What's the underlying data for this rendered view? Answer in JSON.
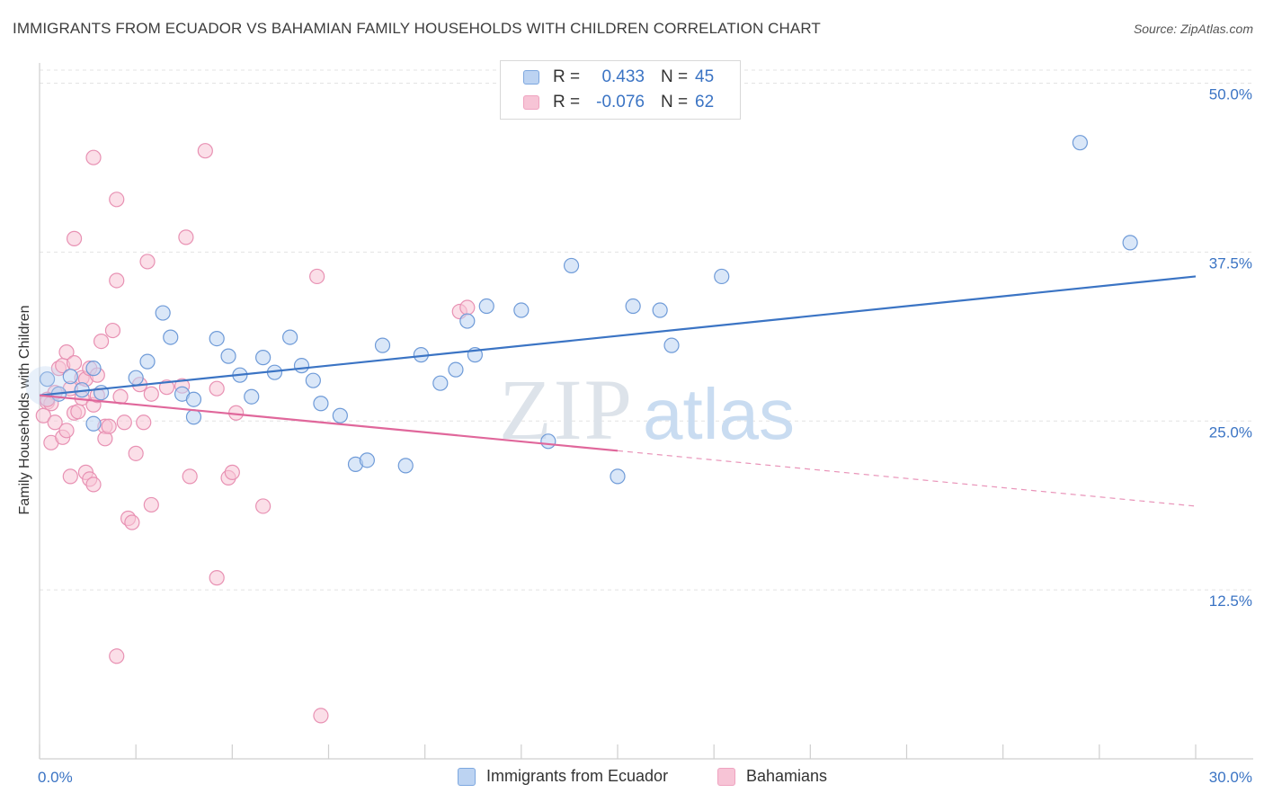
{
  "title": "IMMIGRANTS FROM ECUADOR VS BAHAMIAN FAMILY HOUSEHOLDS WITH CHILDREN CORRELATION CHART",
  "source": "Source: ZipAtlas.com",
  "watermark": {
    "zip": "ZIP",
    "atlas": "atlas"
  },
  "colors": {
    "blue": "#3b74c4",
    "blue_fill": "#bcd3f2",
    "pink": "#e0679b",
    "pink_fill": "#f7c4d6",
    "grid": "#e3e3e3",
    "axis": "#cfcfcf"
  },
  "stats_legend": {
    "rows": [
      {
        "r_label": "R =",
        "r_value": "0.433",
        "n_label": "N =",
        "n_value": "45"
      },
      {
        "r_label": "R =",
        "r_value": "-0.076",
        "n_label": "N =",
        "n_value": "62"
      }
    ]
  },
  "bottom_legend": {
    "series1": "Immigrants from Ecuador",
    "series2": "Bahamians"
  },
  "chart_data": {
    "type": "scatter",
    "title": "IMMIGRANTS FROM ECUADOR VS BAHAMIAN FAMILY HOUSEHOLDS WITH CHILDREN CORRELATION CHART",
    "xlabel": "",
    "ylabel": "Family Households with Children",
    "xlim": [
      0,
      30
    ],
    "ylim": [
      0,
      51.5
    ],
    "x_tick_labels": [
      "0.0%",
      "30.0%"
    ],
    "y_ticks": [
      12.5,
      25.0,
      37.5,
      50.0
    ],
    "y_tick_labels": [
      "12.5%",
      "25.0%",
      "37.5%",
      "50.0%"
    ],
    "grid": true,
    "legend_position": "top-center",
    "series": [
      {
        "name": "Immigrants from Ecuador",
        "color": "#3b74c4",
        "points": [
          [
            0.2,
            28.1
          ],
          [
            0.5,
            27.0
          ],
          [
            0.8,
            28.3
          ],
          [
            1.1,
            27.3
          ],
          [
            1.4,
            28.9
          ],
          [
            1.4,
            24.8
          ],
          [
            1.6,
            27.1
          ],
          [
            2.5,
            28.2
          ],
          [
            2.8,
            29.4
          ],
          [
            3.2,
            33.0
          ],
          [
            3.4,
            31.2
          ],
          [
            3.7,
            27.0
          ],
          [
            4.0,
            26.6
          ],
          [
            4.0,
            25.3
          ],
          [
            4.6,
            31.1
          ],
          [
            4.9,
            29.8
          ],
          [
            5.2,
            28.4
          ],
          [
            5.5,
            26.8
          ],
          [
            5.8,
            29.7
          ],
          [
            6.1,
            28.6
          ],
          [
            6.5,
            31.2
          ],
          [
            6.8,
            29.1
          ],
          [
            7.1,
            28.0
          ],
          [
            7.3,
            26.3
          ],
          [
            7.8,
            25.4
          ],
          [
            8.2,
            21.8
          ],
          [
            8.5,
            22.1
          ],
          [
            8.9,
            30.6
          ],
          [
            9.5,
            21.7
          ],
          [
            9.9,
            29.9
          ],
          [
            10.4,
            27.8
          ],
          [
            10.8,
            28.8
          ],
          [
            11.1,
            32.4
          ],
          [
            11.3,
            29.9
          ],
          [
            11.6,
            33.5
          ],
          [
            12.5,
            33.2
          ],
          [
            13.2,
            23.5
          ],
          [
            13.8,
            36.5
          ],
          [
            15.0,
            20.9
          ],
          [
            15.4,
            33.5
          ],
          [
            16.1,
            33.2
          ],
          [
            16.4,
            30.6
          ],
          [
            17.7,
            35.7
          ],
          [
            28.3,
            38.2
          ],
          [
            27.0,
            45.6
          ]
        ],
        "trend": {
          "x": [
            0,
            30
          ],
          "y": [
            26.9,
            35.7
          ]
        }
      },
      {
        "name": "Bahamians",
        "color": "#e0679b",
        "points": [
          [
            0.1,
            25.4
          ],
          [
            0.2,
            26.4
          ],
          [
            0.3,
            26.3
          ],
          [
            0.3,
            23.4
          ],
          [
            0.4,
            27.1
          ],
          [
            0.4,
            24.9
          ],
          [
            0.5,
            28.9
          ],
          [
            0.6,
            23.8
          ],
          [
            0.6,
            29.1
          ],
          [
            0.7,
            24.3
          ],
          [
            0.7,
            30.1
          ],
          [
            0.8,
            27.4
          ],
          [
            0.8,
            20.9
          ],
          [
            0.9,
            25.6
          ],
          [
            0.9,
            38.5
          ],
          [
            1.0,
            25.7
          ],
          [
            1.1,
            28.2
          ],
          [
            1.1,
            26.7
          ],
          [
            1.2,
            28.1
          ],
          [
            1.2,
            21.2
          ],
          [
            1.3,
            28.9
          ],
          [
            1.3,
            20.7
          ],
          [
            1.4,
            26.2
          ],
          [
            1.4,
            20.3
          ],
          [
            1.4,
            44.5
          ],
          [
            1.5,
            26.9
          ],
          [
            1.6,
            30.9
          ],
          [
            1.7,
            24.6
          ],
          [
            1.7,
            23.7
          ],
          [
            1.8,
            24.6
          ],
          [
            1.9,
            31.7
          ],
          [
            2.0,
            35.4
          ],
          [
            2.0,
            41.4
          ],
          [
            2.1,
            26.8
          ],
          [
            2.2,
            24.9
          ],
          [
            2.3,
            17.8
          ],
          [
            2.4,
            17.5
          ],
          [
            2.5,
            22.6
          ],
          [
            2.6,
            27.7
          ],
          [
            2.7,
            24.9
          ],
          [
            2.8,
            36.8
          ],
          [
            2.9,
            18.8
          ],
          [
            2.9,
            27.0
          ],
          [
            3.3,
            27.5
          ],
          [
            3.7,
            27.6
          ],
          [
            3.8,
            38.6
          ],
          [
            3.9,
            20.9
          ],
          [
            4.3,
            45.0
          ],
          [
            4.6,
            27.4
          ],
          [
            4.6,
            13.4
          ],
          [
            4.9,
            20.8
          ],
          [
            5.0,
            21.2
          ],
          [
            5.1,
            25.6
          ],
          [
            5.8,
            18.7
          ],
          [
            7.2,
            35.7
          ],
          [
            7.3,
            3.2
          ],
          [
            10.9,
            33.1
          ],
          [
            11.1,
            33.4
          ],
          [
            2.0,
            7.6
          ],
          [
            0.9,
            29.3
          ],
          [
            1.5,
            28.4
          ],
          [
            0.2,
            26.6
          ]
        ],
        "trend": {
          "x": [
            0,
            15.0
          ],
          "y": [
            26.9,
            22.8
          ]
        },
        "trend_extension": {
          "x": [
            15.0,
            30
          ],
          "y": [
            22.8,
            18.7
          ]
        }
      }
    ]
  }
}
